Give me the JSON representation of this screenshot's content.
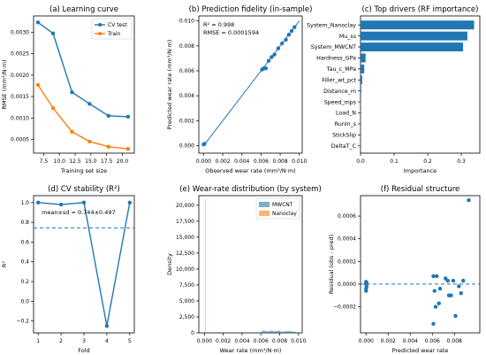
{
  "figure": {
    "width": 550,
    "height": 401
  },
  "colors": {
    "blue": "#1f77b4",
    "orange": "#ff7f0e",
    "line": "#1f77b4",
    "axis": "#000000"
  },
  "chart_data": [
    {
      "id": "a",
      "type": "line",
      "title": "(a) Learning curve",
      "xlabel": "Training set size",
      "ylabel": "RMSE (mm³/N·m)",
      "xlim": [
        5.9,
        21.9
      ],
      "ylim": [
        0.00018,
        0.00338
      ],
      "xticks": [
        7.5,
        10.0,
        12.5,
        15.0,
        17.5,
        20.0
      ],
      "xtick_labels": [
        "7.5",
        "10.0",
        "12.5",
        "15.0",
        "17.5",
        "20.0"
      ],
      "yticks": [
        0.0005,
        0.001,
        0.0015,
        0.002,
        0.0025,
        0.003
      ],
      "ytick_labels": [
        "0.0005",
        "0.0010",
        "0.0015",
        "0.0020",
        "0.0025",
        "0.0030"
      ],
      "legend_position": "top-right",
      "x": [
        6.6,
        9.0,
        12.0,
        14.8,
        17.8,
        20.9
      ],
      "series": [
        {
          "name": "CV test",
          "color": "#1f77b4",
          "values": [
            0.00323,
            0.00297,
            0.0016,
            0.00133,
            0.00105,
            0.00103
          ]
        },
        {
          "name": "Train",
          "color": "#ff7f0e",
          "values": [
            0.00177,
            0.00123,
            0.00068,
            0.00045,
            0.00033,
            0.00028
          ]
        }
      ]
    },
    {
      "id": "b",
      "type": "scatter",
      "title": "(b) Prediction fidelity (in-sample)",
      "xlabel": "Observed wear rate (mm³/N·m)",
      "ylabel": "Predicted wear rate (mm³/N·m)",
      "xlim": [
        -0.0005,
        0.0103
      ],
      "ylim": [
        -0.0006,
        0.0104
      ],
      "xticks": [
        0,
        0.002,
        0.004,
        0.006,
        0.008,
        0.01
      ],
      "xtick_labels": [
        "0.000",
        "0.002",
        "0.004",
        "0.006",
        "0.008",
        "0.010"
      ],
      "yticks": [
        0,
        0.002,
        0.004,
        0.006,
        0.008,
        0.01
      ],
      "ytick_labels": [
        "0.000",
        "0.002",
        "0.004",
        "0.006",
        "0.008",
        "0.010"
      ],
      "annotation": [
        "R² = 0.998",
        "RMSE = 0.0001594"
      ],
      "diagonal": [
        [
          0,
          0
        ],
        [
          0.01,
          0.01
        ]
      ],
      "points": [
        [
          0.0,
          0.0001
        ],
        [
          0.0001,
          0.00015
        ],
        [
          0.0061,
          0.0061
        ],
        [
          0.0063,
          0.0062
        ],
        [
          0.0065,
          0.0062
        ],
        [
          0.0068,
          0.0068
        ],
        [
          0.0071,
          0.0071
        ],
        [
          0.0074,
          0.0073
        ],
        [
          0.0078,
          0.0078
        ],
        [
          0.0082,
          0.0082
        ],
        [
          0.0086,
          0.0085
        ],
        [
          0.0089,
          0.0089
        ],
        [
          0.0092,
          0.0092
        ],
        [
          0.0095,
          0.0095
        ]
      ]
    },
    {
      "id": "c",
      "type": "bar",
      "orientation": "horizontal",
      "title": "(c) Top drivers (RF importance)",
      "xlabel": "Importance",
      "xlim": [
        0,
        0.355
      ],
      "xticks": [
        0,
        0.1,
        0.2,
        0.3
      ],
      "xtick_labels": [
        "0.0",
        "0.1",
        "0.2",
        "0.3"
      ],
      "categories": [
        "System_Nanoclay",
        "Mu_ss",
        "System_MWCNT",
        "Hardness_GPa",
        "Tau_c_MPa",
        "Filler_wt_pct",
        "Distance_m",
        "Speed_mps",
        "Load_N",
        "RunIn_s",
        "StickSlip",
        "DeltaT_C"
      ],
      "values": [
        0.338,
        0.318,
        0.305,
        0.015,
        0.011,
        0.005,
        0.002,
        0.001,
        0.0005,
        0.0003,
        0.0002,
        0.0001
      ]
    },
    {
      "id": "d",
      "type": "line",
      "title": "(d) CV stability (R²)",
      "xlabel": "Fold",
      "ylabel": "R²",
      "xlim": [
        0.8,
        5.2
      ],
      "ylim": [
        -0.32,
        1.07
      ],
      "xticks": [
        1,
        2,
        3,
        4,
        5
      ],
      "xtick_labels": [
        "1",
        "2",
        "3",
        "4",
        "5"
      ],
      "yticks": [
        -0.2,
        0.0,
        0.2,
        0.4,
        0.6,
        0.8,
        1.0
      ],
      "ytick_labels": [
        "−0.2",
        "0.0",
        "0.2",
        "0.4",
        "0.6",
        "0.8",
        "1.0"
      ],
      "annotation": "mean±sd = 0.744±0.497",
      "mean_line": 0.744,
      "x": [
        1,
        2,
        3,
        4,
        5
      ],
      "values": [
        1.0,
        0.98,
        1.0,
        -0.25,
        1.0
      ]
    },
    {
      "id": "e",
      "type": "histogram",
      "title": "(e) Wear-rate distribution (by system)",
      "xlabel": "Wear rate (mm³/N·m)",
      "ylabel": "Density",
      "xlim": [
        -0.0006,
        0.0104
      ],
      "ylim": [
        0,
        21500
      ],
      "xticks": [
        0,
        0.002,
        0.004,
        0.006,
        0.008,
        0.01
      ],
      "xtick_labels": [
        "0.000",
        "0.002",
        "0.004",
        "0.006",
        "0.008",
        "0.010"
      ],
      "yticks": [
        0,
        2500,
        5000,
        7500,
        10000,
        12500,
        15000,
        17500,
        20000
      ],
      "ytick_labels": [
        "0",
        "2,500",
        "5,000",
        "7,500",
        "10,000",
        "12,500",
        "15,000",
        "17,500",
        "20,000"
      ],
      "legend_position": "top-right",
      "series": [
        {
          "name": "MWCNT",
          "color": "#1f77b4",
          "bins": [
            [
              0.0061,
              0.0065,
              330
            ],
            [
              0.0065,
              0.0069,
              250
            ],
            [
              0.0069,
              0.0073,
              330
            ],
            [
              0.0073,
              0.0077,
              250
            ],
            [
              0.0077,
              0.0081,
              330
            ],
            [
              0.0081,
              0.0085,
              180
            ],
            [
              0.0085,
              0.0089,
              250
            ],
            [
              0.0089,
              0.0093,
              250
            ],
            [
              0.0093,
              0.0097,
              180
            ]
          ]
        },
        {
          "name": "Nanoclay",
          "color": "#ff7f0e",
          "bins": [
            [
              5e-05,
              0.0001,
              21000
            ]
          ]
        }
      ]
    },
    {
      "id": "f",
      "type": "scatter",
      "title": "(f) Residual structure",
      "xlabel": "Predicted wear rate",
      "ylabel": "Residual (obs - pred)",
      "xlim": [
        -0.0005,
        0.0103
      ],
      "ylim": [
        -0.00043,
        0.00078
      ],
      "xticks": [
        0,
        0.002,
        0.004,
        0.006,
        0.008
      ],
      "xtick_labels": [
        "0.000",
        "0.002",
        "0.004",
        "0.006",
        "0.008"
      ],
      "yticks": [
        -0.0002,
        0,
        0.0002,
        0.0004,
        0.0006
      ],
      "ytick_labels": [
        "−0.0002",
        "0.0000",
        "0.0002",
        "0.0004",
        "0.0006"
      ],
      "zero_line": 0,
      "points": [
        [
          0.0,
          2e-05
        ],
        [
          0.0,
          0.0
        ],
        [
          5e-05,
          -2e-05
        ],
        [
          0.0,
          -4e-05
        ],
        [
          5e-05,
          1e-05
        ],
        [
          0.0,
          -6e-05
        ],
        [
          0.0061,
          7e-05
        ],
        [
          0.0064,
          7e-05
        ],
        [
          0.0062,
          -6e-05
        ],
        [
          0.0063,
          -0.0002
        ],
        [
          0.0061,
          -0.00035
        ],
        [
          0.0066,
          -0.00017
        ],
        [
          0.0067,
          -4e-05
        ],
        [
          0.0072,
          5e-05
        ],
        [
          0.0074,
          3e-05
        ],
        [
          0.0075,
          -0.0001
        ],
        [
          0.0077,
          -0.0001
        ],
        [
          0.0079,
          3e-05
        ],
        [
          0.0081,
          -0.00028
        ],
        [
          0.0084,
          -2e-05
        ],
        [
          0.0086,
          -8e-05
        ],
        [
          0.0088,
          3e-05
        ],
        [
          0.0093,
          0.00074
        ]
      ]
    }
  ]
}
